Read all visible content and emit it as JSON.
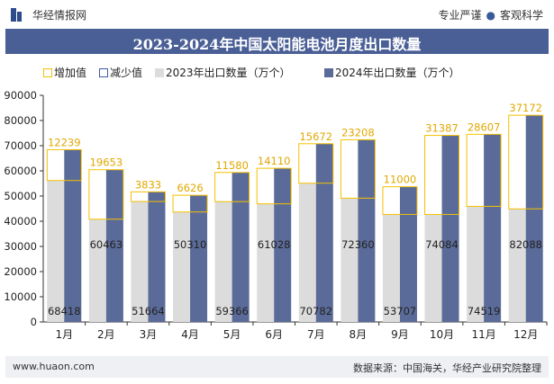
{
  "header": {
    "brand": "华经情报网",
    "slogan_left": "专业严谨",
    "slogan_right": "客观科学"
  },
  "title": "2023-2024年中国太阳能电池月度出口数量",
  "legend": {
    "increase": "增加值",
    "decrease": "减少值",
    "series_2023": "2023年出口数量（万个）",
    "series_2024": "2024年出口数量（万个）"
  },
  "footer": {
    "website": "www.huaon.com",
    "source": "数据来源：中国海关，华经产业研究院整理"
  },
  "colors": {
    "title_bg": "#4a5f96",
    "bar_2023": "#dcdcdc",
    "bar_2024": "#5b6b99",
    "increase": "#f5c000",
    "decrease": "#3e5ba6",
    "label_increase": "#e1a800"
  },
  "chart_data": {
    "type": "bar",
    "categories": [
      "1月",
      "2月",
      "3月",
      "4月",
      "5月",
      "6月",
      "7月",
      "8月",
      "9月",
      "10月",
      "11月",
      "12月"
    ],
    "series": [
      {
        "name": "2023年出口数量（万个）",
        "values": [
          56179,
          40810,
          47831,
          43684,
          47786,
          46918,
          55110,
          49152,
          42707,
          42697,
          45912,
          44916
        ]
      },
      {
        "name": "2024年出口数量（万个）",
        "values": [
          68418,
          60463,
          51664,
          50310,
          59366,
          61028,
          70782,
          72360,
          53707,
          74084,
          74519,
          82088
        ]
      }
    ],
    "increase": [
      12239,
      19653,
      3833,
      6626,
      11580,
      14110,
      15672,
      23208,
      11000,
      31387,
      28607,
      37172
    ],
    "ylim": [
      0,
      90000
    ],
    "yticks": [
      0,
      10000,
      20000,
      30000,
      40000,
      50000,
      60000,
      70000,
      80000,
      90000
    ],
    "grid": false
  }
}
